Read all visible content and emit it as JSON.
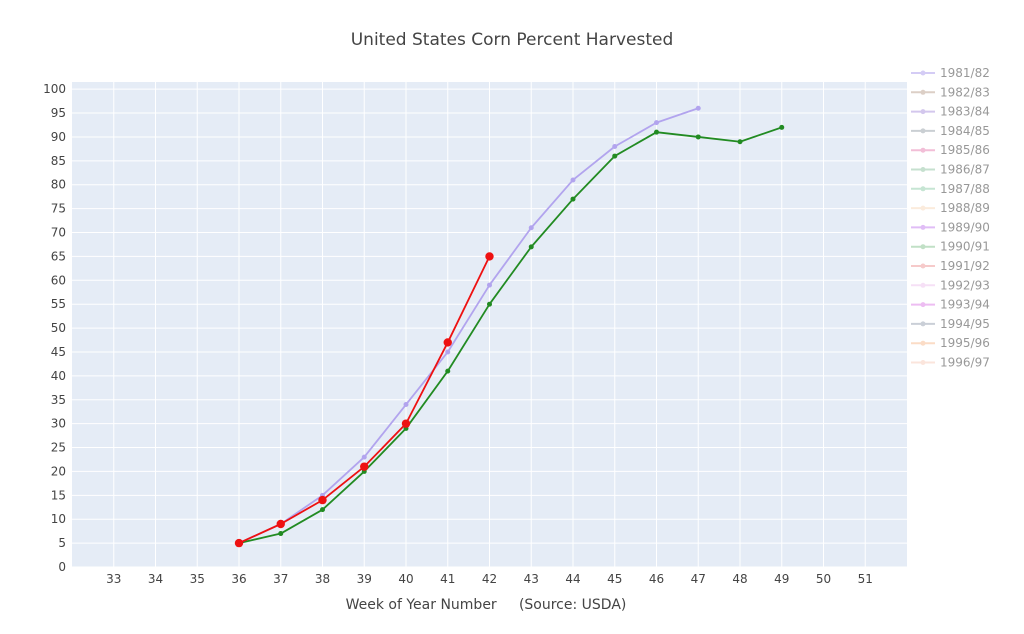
{
  "chart_data": {
    "type": "line",
    "title": "United States Corn Percent Harvested",
    "xlabel": "Week of Year Number     (Source: USDA)",
    "ylabel": "",
    "xlim": [
      32,
      52
    ],
    "ylim": [
      0,
      101.5
    ],
    "x_ticks": [
      33,
      34,
      35,
      36,
      37,
      38,
      39,
      40,
      41,
      42,
      43,
      44,
      45,
      46,
      47,
      48,
      49,
      50,
      51
    ],
    "y_ticks": [
      0,
      5,
      10,
      15,
      20,
      25,
      30,
      35,
      40,
      45,
      50,
      55,
      60,
      65,
      70,
      75,
      80,
      85,
      90,
      95,
      100
    ],
    "grid": true,
    "plot_background": "#e5ecf6",
    "legend_position": "right",
    "series": [
      {
        "name": "1981/82",
        "color": "#b2a4ee",
        "legend_faded": true,
        "x": [
          36,
          37,
          38,
          39,
          40,
          41,
          42,
          43,
          44,
          45,
          46,
          47
        ],
        "values": [
          5,
          9,
          15,
          23,
          34,
          45,
          59,
          71,
          81,
          88,
          93,
          96
        ]
      },
      {
        "name": "1982/83",
        "color": "#c0a898",
        "legend_faded": true,
        "x": [],
        "values": []
      },
      {
        "name": "1983/84",
        "color": "#b09ae0",
        "legend_faded": true,
        "x": [],
        "values": []
      },
      {
        "name": "1984/85",
        "color": "#a0a8b0",
        "legend_faded": true,
        "x": [],
        "values": []
      },
      {
        "name": "1985/86",
        "color": "#e88ab8",
        "legend_faded": true,
        "x": [],
        "values": []
      },
      {
        "name": "1986/87",
        "color": "#98c8a8",
        "legend_faded": true,
        "x": [],
        "values": []
      },
      {
        "name": "1987/88",
        "color": "#98d0b0",
        "legend_faded": true,
        "x": [],
        "values": []
      },
      {
        "name": "1988/89",
        "color": "#f8dcc0",
        "legend_faded": true,
        "x": [],
        "values": []
      },
      {
        "name": "1989/90",
        "color": "#c888f0",
        "legend_faded": true,
        "x": [],
        "values": []
      },
      {
        "name": "1990/91",
        "color": "#90c898",
        "legend_faded": true,
        "x": [],
        "values": []
      },
      {
        "name": "1991/92",
        "color": "#f0a0a0",
        "legend_faded": true,
        "x": [],
        "values": []
      },
      {
        "name": "1992/93",
        "color": "#f0c8f0",
        "legend_faded": true,
        "x": [],
        "values": []
      },
      {
        "name": "1993/94",
        "color": "#e088e8",
        "legend_faded": true,
        "x": [],
        "values": []
      },
      {
        "name": "1994/95",
        "color": "#a0a8b8",
        "legend_faded": true,
        "x": [],
        "values": []
      },
      {
        "name": "1995/96",
        "color": "#f8c098",
        "legend_faded": true,
        "x": [],
        "values": []
      },
      {
        "name": "1996/97",
        "color": "#f8d0c0",
        "legend_faded": true,
        "x": [],
        "values": []
      },
      {
        "name": "",
        "color": "#228b22",
        "marker_size": 2.5,
        "x": [
          36,
          37,
          38,
          39,
          40,
          41,
          42,
          43,
          44,
          45,
          46,
          47,
          48,
          49
        ],
        "values": [
          5,
          7,
          12,
          20,
          29,
          41,
          55,
          67,
          77,
          86,
          91,
          90,
          89,
          92
        ]
      },
      {
        "name": "",
        "color": "#ee1111",
        "marker_size": 4.2,
        "x": [
          36,
          37,
          38,
          39,
          40,
          41,
          42
        ],
        "values": [
          5,
          9,
          14,
          21,
          30,
          47,
          65
        ]
      }
    ]
  }
}
